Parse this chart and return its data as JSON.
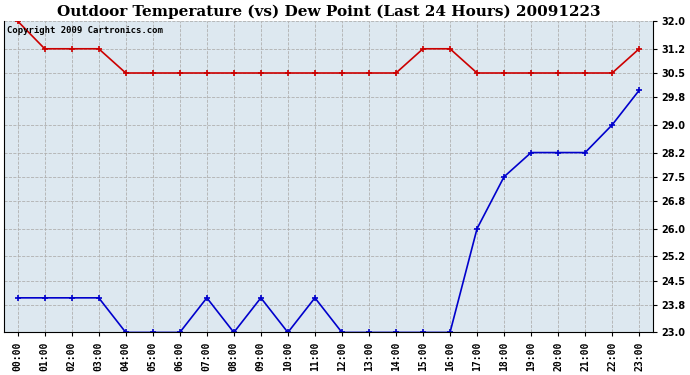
{
  "title": "Outdoor Temperature (vs) Dew Point (Last 24 Hours) 20091223",
  "copyright": "Copyright 2009 Cartronics.com",
  "x_labels": [
    "00:00",
    "01:00",
    "02:00",
    "03:00",
    "04:00",
    "05:00",
    "06:00",
    "07:00",
    "08:00",
    "09:00",
    "10:00",
    "11:00",
    "12:00",
    "13:00",
    "14:00",
    "15:00",
    "16:00",
    "17:00",
    "18:00",
    "19:00",
    "20:00",
    "21:00",
    "22:00",
    "23:00"
  ],
  "temp_y": [
    32.0,
    31.2,
    31.2,
    31.2,
    30.5,
    30.5,
    30.5,
    30.5,
    30.5,
    30.5,
    30.5,
    30.5,
    30.5,
    30.5,
    30.5,
    31.2,
    31.2,
    30.5,
    30.5,
    30.5,
    30.5,
    30.5,
    30.5,
    31.2
  ],
  "dew_y": [
    24.0,
    24.0,
    24.0,
    24.0,
    23.0,
    23.0,
    23.0,
    24.0,
    23.0,
    24.0,
    23.0,
    24.0,
    23.0,
    23.0,
    23.0,
    23.0,
    23.0,
    26.0,
    27.5,
    28.2,
    28.2,
    28.2,
    29.0,
    30.0
  ],
  "temp_color": "#cc0000",
  "dew_color": "#0000cc",
  "bg_color": "#ffffff",
  "plot_bg_color": "#dde8f0",
  "grid_color": "#b0b0b0",
  "ylim_min": 23.0,
  "ylim_max": 32.0,
  "yticks": [
    23.0,
    23.8,
    24.5,
    25.2,
    26.0,
    26.8,
    27.5,
    28.2,
    29.0,
    29.8,
    30.5,
    31.2,
    32.0
  ],
  "marker": "+",
  "marker_size": 5,
  "linewidth": 1.2,
  "title_fontsize": 11,
  "tick_fontsize": 7,
  "copyright_fontsize": 6.5
}
